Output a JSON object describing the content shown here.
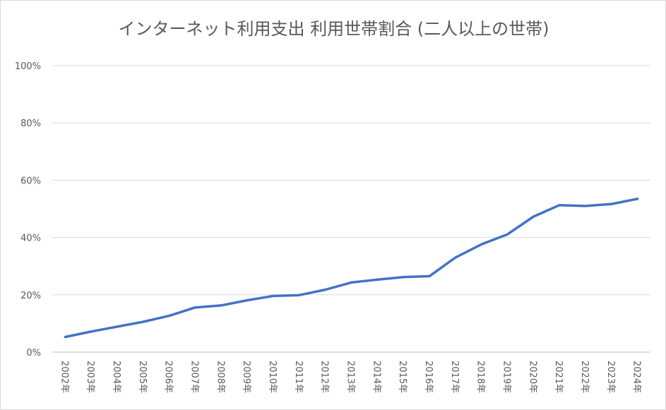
{
  "chart_data": {
    "type": "line",
    "title": "インターネット利用支出 利用世帯割合 (二人以上の世帯)",
    "xlabel": "",
    "ylabel": "",
    "categories": [
      "2002年",
      "2003年",
      "2004年",
      "2005年",
      "2006年",
      "2007年",
      "2008年",
      "2009年",
      "2010年",
      "2011年",
      "2012年",
      "2013年",
      "2014年",
      "2015年",
      "2016年",
      "2017年",
      "2018年",
      "2019年",
      "2020年",
      "2021年",
      "2022年",
      "2023年",
      "2024年"
    ],
    "series": [
      {
        "color": "#4472c4",
        "values": [
          5.3,
          7.2,
          8.9,
          10.6,
          12.7,
          15.6,
          16.3,
          18.1,
          19.6,
          19.9,
          21.8,
          24.3,
          25.3,
          26.2,
          26.5,
          33.0,
          37.6,
          41.1,
          47.3,
          51.3,
          51.0,
          51.7,
          53.5
        ]
      }
    ],
    "ylim": [
      0,
      100
    ],
    "yticks": [
      0,
      20,
      40,
      60,
      80,
      100
    ],
    "ytick_labels": [
      "0%",
      "20%",
      "40%",
      "60%",
      "80%",
      "100%"
    ],
    "grid": true,
    "legend": "none"
  }
}
